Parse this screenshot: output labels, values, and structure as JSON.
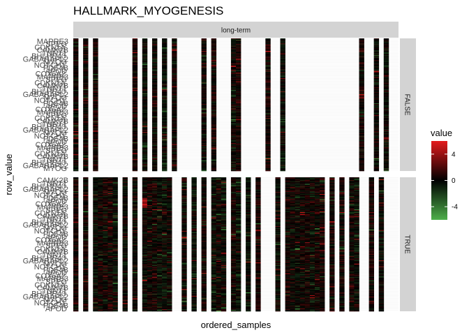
{
  "chart_data": {
    "type": "heatmap",
    "title": "HALLMARK_MYOGENESIS",
    "xlabel": "ordered_samples",
    "ylabel": "row_value",
    "column_facet": "long-term",
    "row_facets": [
      "FALSE",
      "TRUE"
    ],
    "n_samples": 66,
    "n_genes": 200,
    "gene_labels_visible": [
      "MAPRE3",
      "BHLHE40",
      "APOD",
      "CAMK2B",
      "NOTCH1",
      "SPEG",
      "GABARAPL2",
      "COX6A2",
      "TNNT1",
      "PDE4B",
      "CDKN1A",
      "MYOG"
    ],
    "missing_columns": {
      "FALSE": [
        1,
        3,
        5,
        6,
        7,
        8,
        9,
        10,
        11,
        13,
        15,
        17,
        19,
        21,
        22,
        23,
        24,
        25,
        27,
        29,
        30,
        31,
        34,
        35,
        36,
        37,
        38,
        40,
        41,
        43,
        44,
        45,
        46,
        47,
        48,
        49,
        50,
        51,
        52,
        53,
        54,
        55,
        56,
        57,
        59,
        60,
        62,
        64,
        65
      ],
      "TRUE": [
        1,
        3,
        9,
        11,
        13,
        20,
        21,
        23,
        25,
        27,
        31,
        34,
        36,
        38,
        39,
        40,
        42,
        51,
        53,
        55,
        58,
        59,
        61,
        63,
        64,
        65
      ]
    },
    "legend": {
      "title": "value",
      "ticks": [
        4,
        0,
        -4
      ],
      "min": -6,
      "max": 6,
      "colors": {
        "low": "#4daf4a",
        "mid": "#000000",
        "high": "#e41a1c"
      }
    },
    "colors": {
      "missing_fill": "#ffffff",
      "grid": "#ebebeb",
      "strip_bg": "#d3d3d3"
    },
    "seed": 20240517
  }
}
